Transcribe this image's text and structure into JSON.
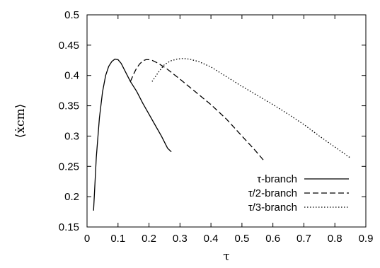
{
  "chart_data": {
    "type": "line",
    "title": "",
    "xlabel": "τ",
    "ylabel": "⟨ẋcm⟩",
    "xlim": [
      0,
      0.9
    ],
    "ylim": [
      0.15,
      0.5
    ],
    "x_ticks": [
      0,
      0.1,
      0.2,
      0.3,
      0.4,
      0.5,
      0.6,
      0.7,
      0.8,
      0.9
    ],
    "y_ticks": [
      0.15,
      0.2,
      0.25,
      0.3,
      0.35,
      0.4,
      0.45,
      0.5
    ],
    "x_tick_labels": [
      "0",
      "0.1",
      "0.2",
      "0.3",
      "0.4",
      "0.5",
      "0.6",
      "0.7",
      "0.8",
      "0.9"
    ],
    "y_tick_labels": [
      "0.15",
      "0.2",
      "0.25",
      "0.3",
      "0.35",
      "0.4",
      "0.45",
      "0.5"
    ],
    "grid": false,
    "legend_position": "bottom-right",
    "series": [
      {
        "name": "τ-branch",
        "style": "solid",
        "x": [
          0.021,
          0.03,
          0.04,
          0.05,
          0.06,
          0.07,
          0.08,
          0.09,
          0.1,
          0.11,
          0.12,
          0.14,
          0.16,
          0.18,
          0.2,
          0.22,
          0.24,
          0.26,
          0.272
        ],
        "y": [
          0.177,
          0.265,
          0.33,
          0.373,
          0.4,
          0.415,
          0.423,
          0.427,
          0.426,
          0.42,
          0.41,
          0.39,
          0.374,
          0.354,
          0.336,
          0.318,
          0.3,
          0.28,
          0.274
        ]
      },
      {
        "name": "τ/2-branch",
        "style": "dashed",
        "x": [
          0.14,
          0.15,
          0.16,
          0.17,
          0.18,
          0.19,
          0.2,
          0.21,
          0.23,
          0.26,
          0.3,
          0.35,
          0.4,
          0.45,
          0.5,
          0.54,
          0.57
        ],
        "y": [
          0.39,
          0.402,
          0.412,
          0.419,
          0.424,
          0.426,
          0.426,
          0.425,
          0.42,
          0.41,
          0.394,
          0.373,
          0.352,
          0.328,
          0.3,
          0.278,
          0.26
        ]
      },
      {
        "name": "τ/3-branch",
        "style": "dotted",
        "x": [
          0.21,
          0.23,
          0.25,
          0.27,
          0.29,
          0.31,
          0.33,
          0.36,
          0.4,
          0.45,
          0.5,
          0.55,
          0.6,
          0.65,
          0.7,
          0.75,
          0.8,
          0.85
        ],
        "y": [
          0.39,
          0.405,
          0.418,
          0.424,
          0.427,
          0.428,
          0.427,
          0.423,
          0.414,
          0.398,
          0.382,
          0.367,
          0.352,
          0.336,
          0.319,
          0.3,
          0.282,
          0.264
        ]
      }
    ]
  }
}
